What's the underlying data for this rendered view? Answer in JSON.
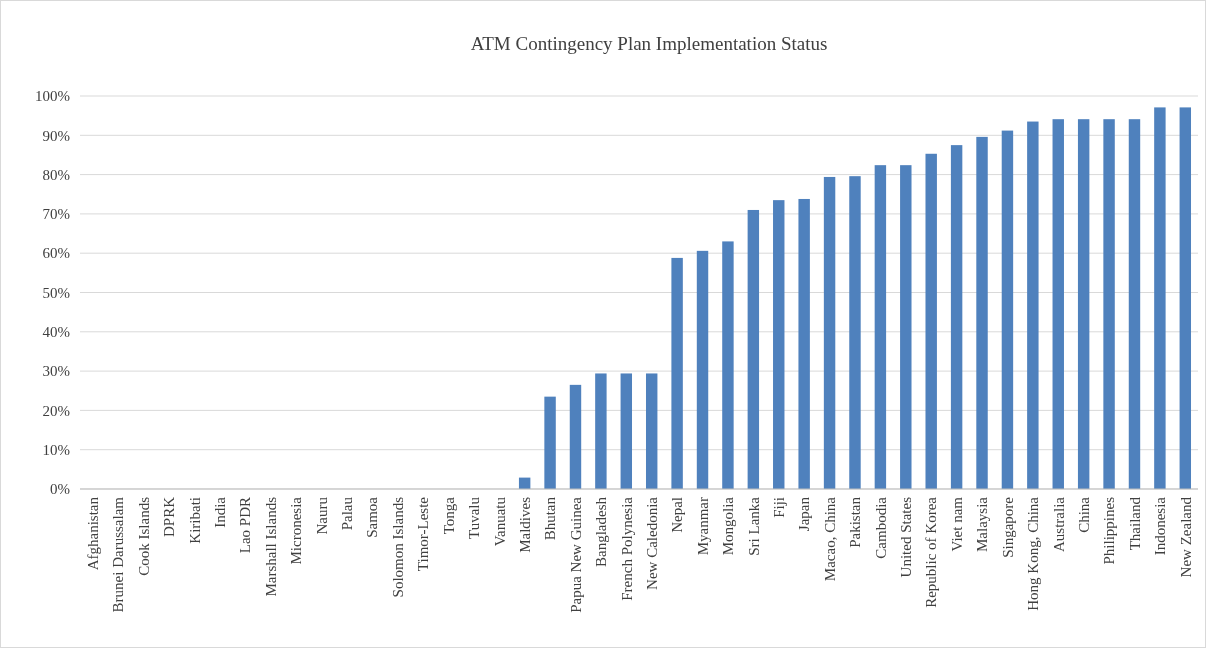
{
  "chart_data": {
    "type": "bar",
    "title": "ATM Contingency Plan Implementation Status",
    "categories": [
      "Afghanistan",
      "Brunei Darussalam",
      "Cook Islands",
      "DPRK",
      "Kiribati",
      "India",
      "Lao PDR",
      "Marshall Islands",
      "Micronesia",
      "Nauru",
      "Palau",
      "Samoa",
      "Solomon Islands",
      "Timor-Leste",
      "Tonga",
      "Tuvalu",
      "Vanuatu",
      "Maldives",
      "Bhutan",
      "Papua New Guinea",
      "Bangladesh",
      "French Polynesia",
      "New Caledonia",
      "Nepal",
      "Myanmar",
      "Mongolia",
      "Sri Lanka",
      "Fiji",
      "Japan",
      "Macao, China",
      "Pakistan",
      "Cambodia",
      "United States",
      "Republic of Korea",
      "Viet nam",
      "Malaysia",
      "Singapore",
      "Hong Kong, China",
      "Australia",
      "China",
      "Philippines",
      "Thailand",
      "Indonesia",
      "New Zealand"
    ],
    "values": [
      0,
      0,
      0,
      0,
      0,
      0,
      0,
      0,
      0,
      0,
      0,
      0,
      0,
      0,
      0,
      0,
      0,
      2.9,
      23.5,
      26.5,
      29.4,
      29.4,
      29.4,
      58.8,
      60.6,
      63.0,
      71.0,
      73.5,
      73.8,
      79.4,
      79.6,
      82.4,
      82.4,
      85.3,
      87.5,
      89.6,
      91.2,
      93.5,
      94.1,
      94.1,
      94.1,
      94.1,
      97.1,
      97.1
    ],
    "color": "#4f81bd",
    "ylim": [
      0,
      100
    ],
    "yticks": [
      {
        "value": 0,
        "label": "0%"
      },
      {
        "value": 10,
        "label": "10%"
      },
      {
        "value": 20,
        "label": "20%"
      },
      {
        "value": 30,
        "label": "30%"
      },
      {
        "value": 40,
        "label": "40%"
      },
      {
        "value": 50,
        "label": "50%"
      },
      {
        "value": 60,
        "label": "60%"
      },
      {
        "value": 70,
        "label": "70%"
      },
      {
        "value": 80,
        "label": "80%"
      },
      {
        "value": 90,
        "label": "90%"
      },
      {
        "value": 100,
        "label": "100%"
      }
    ],
    "grid": "y"
  }
}
